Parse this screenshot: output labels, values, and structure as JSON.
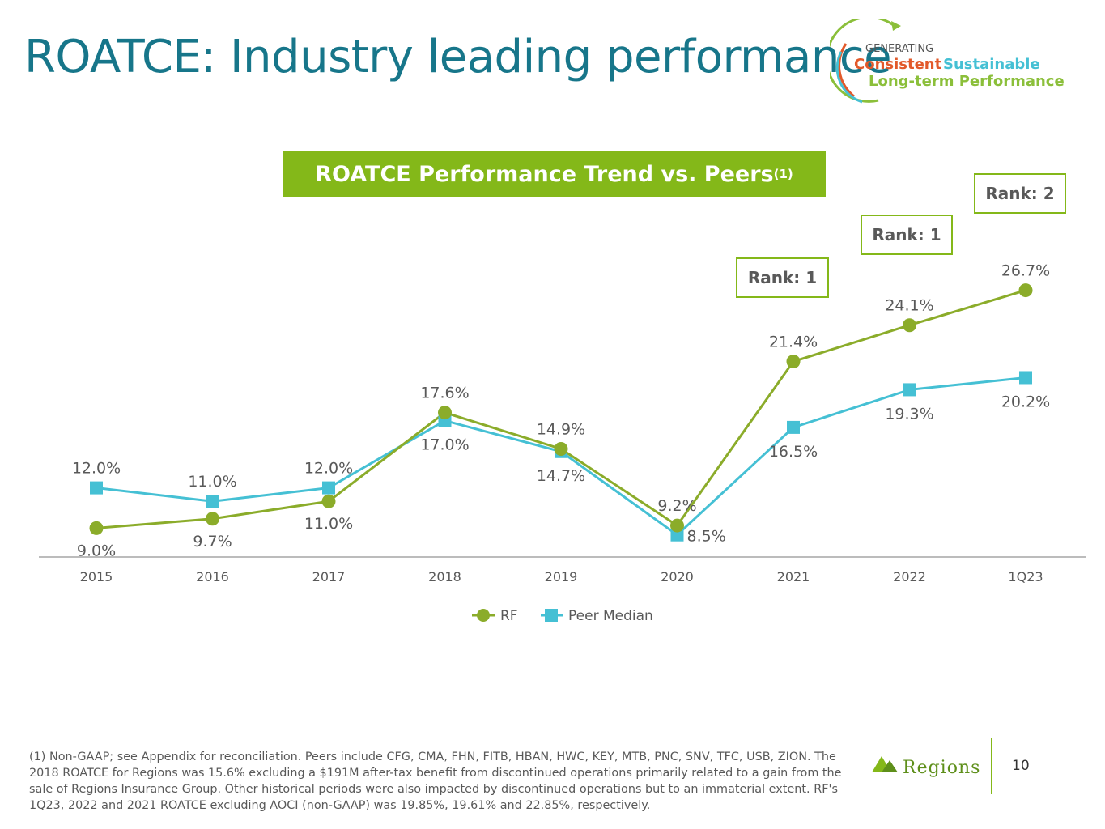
{
  "slide": {
    "title": "ROATCE: Industry leading performance",
    "page_number": "10"
  },
  "logo": {
    "line1": "GENERATING",
    "consistent": "Consistent",
    "sustainable": "Sustainable",
    "longterm": "Long-term Performance"
  },
  "brand": {
    "name": "Regions"
  },
  "chart_data": {
    "type": "line",
    "title": "ROATCE Performance Trend vs. Peers",
    "title_superscript": "(1)",
    "categories": [
      "2015",
      "2016",
      "2017",
      "2018",
      "2019",
      "2020",
      "2021",
      "2022",
      "1Q23"
    ],
    "series": [
      {
        "name": "RF",
        "marker": "circle",
        "color": "#8bac2a",
        "values": [
          9.0,
          9.7,
          11.0,
          17.6,
          14.9,
          9.2,
          21.4,
          24.1,
          26.7
        ],
        "labels": [
          "9.0%",
          "9.7%",
          "11.0%",
          "17.6%",
          "14.9%",
          "9.2%",
          "21.4%",
          "24.1%",
          "26.7%"
        ]
      },
      {
        "name": "Peer Median",
        "marker": "square",
        "color": "#45c0d4",
        "values": [
          12.0,
          11.0,
          12.0,
          17.0,
          14.7,
          8.5,
          16.5,
          19.3,
          20.2
        ],
        "labels": [
          "12.0%",
          "11.0%",
          "12.0%",
          "17.0%",
          "14.7%",
          "8.5%",
          "16.5%",
          "19.3%",
          "20.2%"
        ]
      }
    ],
    "ranks": [
      {
        "category": "2021",
        "label": "Rank: 1"
      },
      {
        "category": "2022",
        "label": "Rank: 1"
      },
      {
        "category": "1Q23",
        "label": "Rank: 2"
      }
    ],
    "legend_position": "bottom-center",
    "ylim": [
      4.9,
      29.0
    ],
    "grid": false
  },
  "footnote": "(1) Non-GAAP; see Appendix for reconciliation. Peers include CFG, CMA, FHN, FITB, HBAN, HWC, KEY, MTB, PNC, SNV, TFC, USB, ZION.  The 2018 ROATCE for Regions was 15.6% excluding a $191M after-tax benefit from discontinued operations primarily related to a gain from the sale of Regions Insurance Group. Other historical periods were also impacted by discontinued operations but to an immaterial extent. RF's 1Q23, 2022 and 2021 ROATCE excluding AOCI (non-GAAP) was 19.85%, 19.61% and 22.85%, respectively.",
  "colors": {
    "title": "#17768a",
    "accent_green": "#84b819",
    "rf_line": "#8bac2a",
    "peer_line": "#45c0d4",
    "text_gray": "#595959"
  }
}
